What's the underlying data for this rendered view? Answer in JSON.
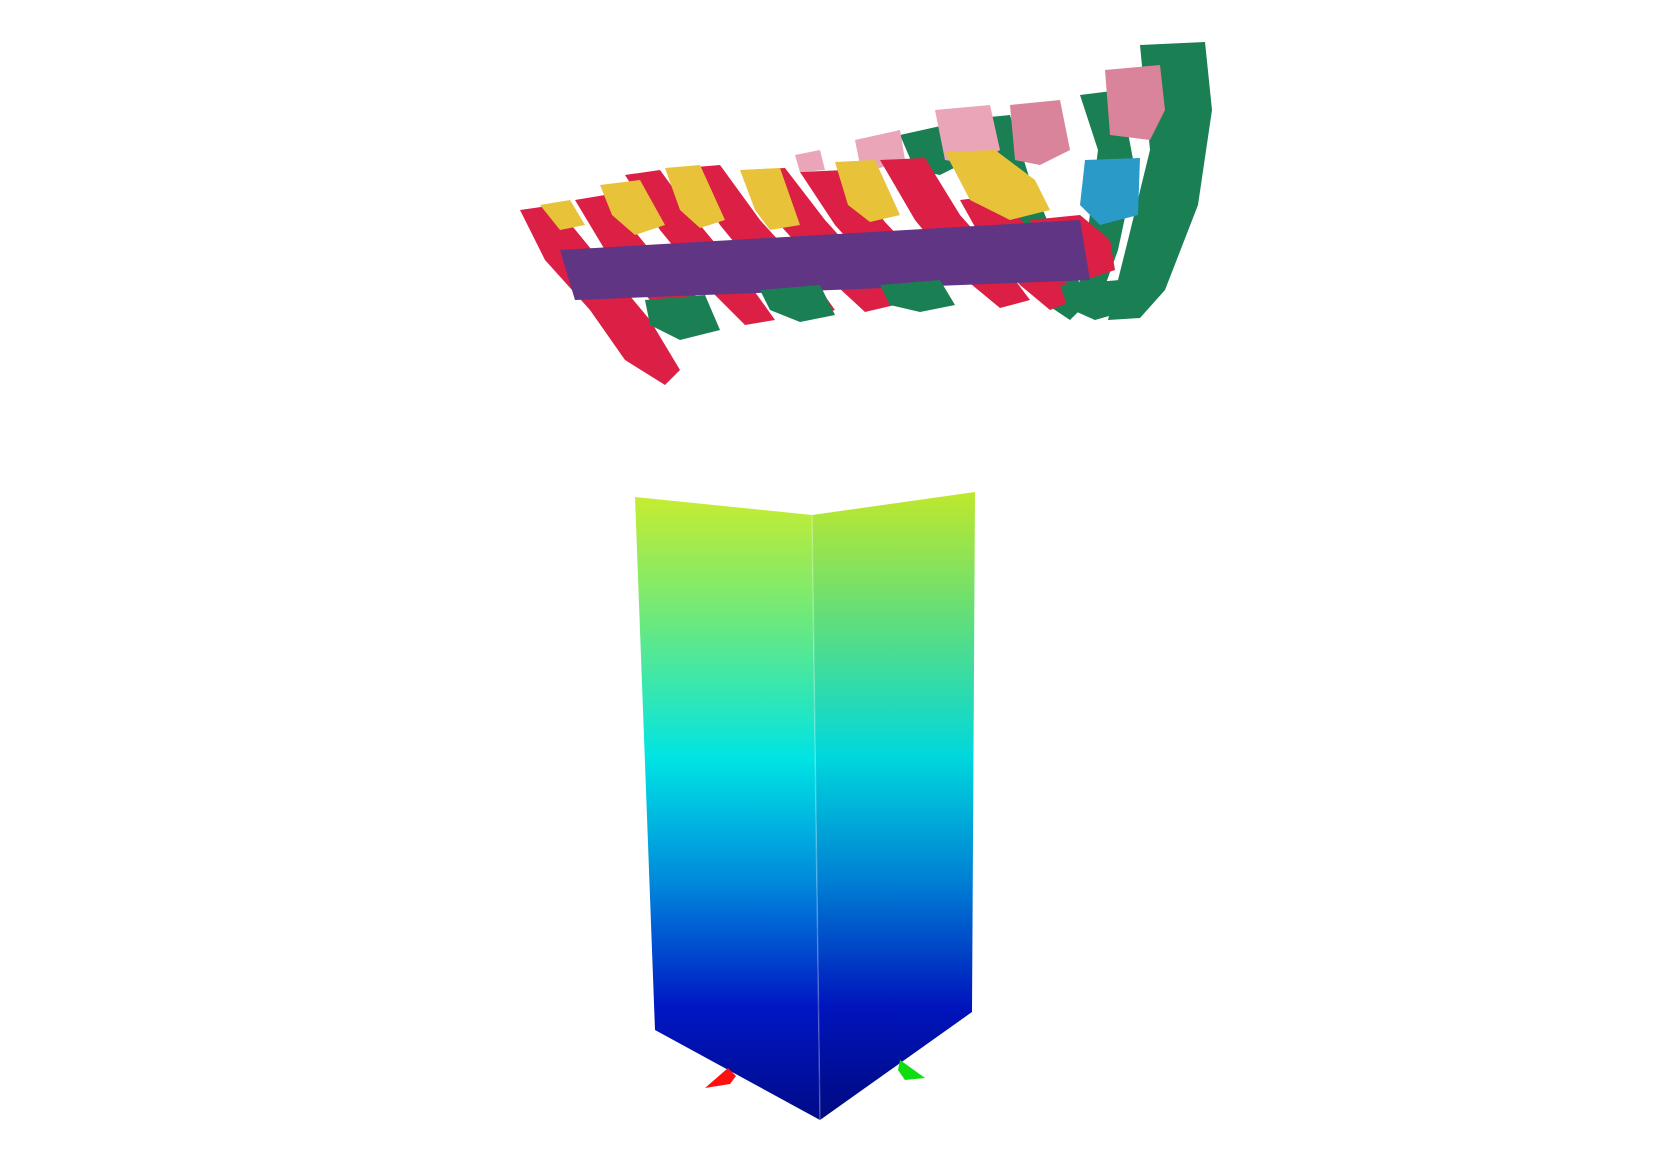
{
  "scene": {
    "background_color": "#ffffff",
    "pointcloud": {
      "segment_colors": {
        "red": "#dc1f44",
        "yellow": "#e8c33a",
        "purple": "#5f3584",
        "green": "#1a7f52",
        "pink": "#d9849a",
        "light_pink": "#eaa5b8",
        "blue": "#2a9ac9"
      }
    },
    "column": {
      "gradient_colors": [
        "#c9f22e",
        "#6cf07c",
        "#00eaea",
        "#0094e0",
        "#0018c8",
        "#000c90"
      ]
    },
    "axes": {
      "x_axis_color": "#ff1010",
      "y_axis_color": "#10dd10"
    }
  }
}
